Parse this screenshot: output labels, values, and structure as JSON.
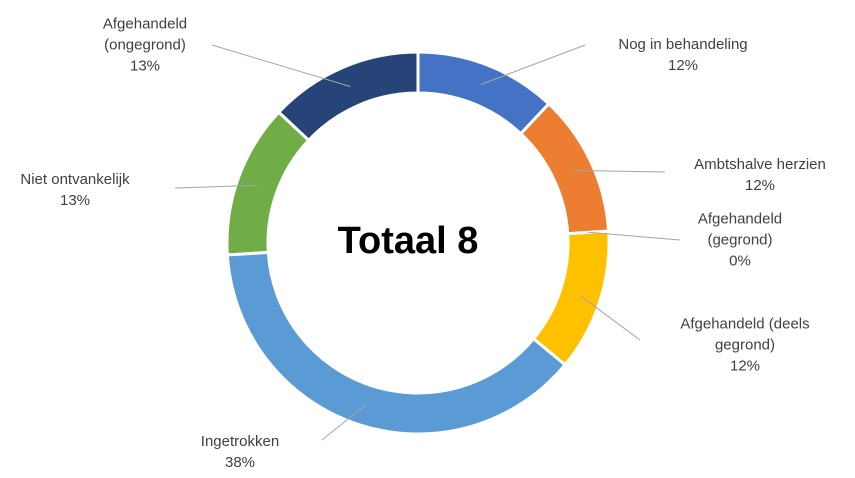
{
  "chart_data": {
    "type": "donut",
    "center_label": "Totaal 8",
    "categories": [
      "Nog in behandeling",
      "Ambtshalve herzien",
      "Afgehandeld (gegrond)",
      "Afgehandeld (deels gegrond)",
      "Ingetrokken",
      "Niet ontvankelijk",
      "Afgehandeld (ongegrond)"
    ],
    "values": [
      12,
      12,
      0,
      12,
      38,
      13,
      13
    ],
    "value_labels": [
      "12%",
      "12%",
      "0%",
      "12%",
      "38%",
      "13%",
      "13%"
    ],
    "colors": [
      "#4472c4",
      "#ed7d31",
      "#a5a5a5",
      "#ffc000",
      "#5b9bd5",
      "#70ad47",
      "#264478"
    ]
  }
}
